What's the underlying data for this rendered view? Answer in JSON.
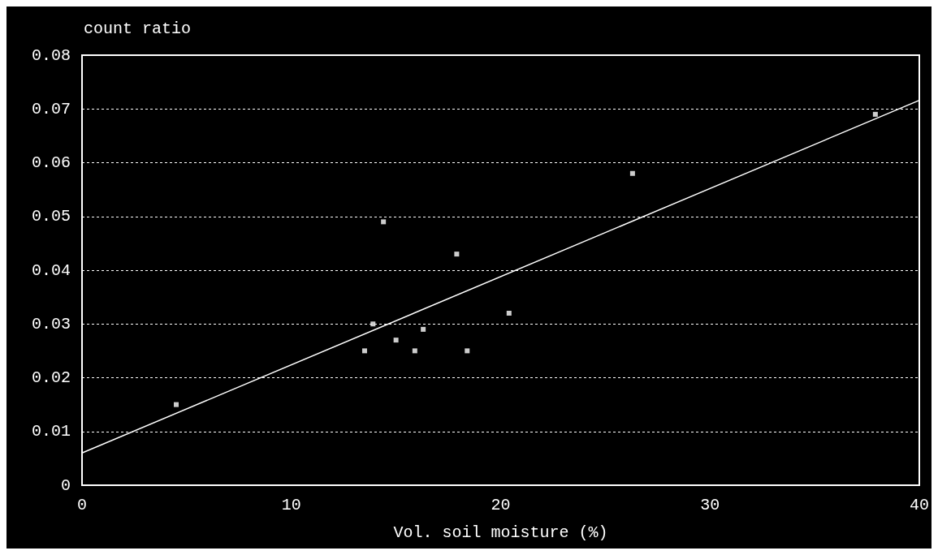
{
  "chart_data": {
    "type": "scatter",
    "xlabel": "Vol. soil moisture (%)",
    "ylabel": "count ratio",
    "xlim": [
      0,
      40
    ],
    "xticks": [
      0,
      10,
      20,
      30,
      40
    ],
    "ylim": [
      0,
      0.08
    ],
    "yticks": [
      0,
      0.01,
      0.02,
      0.03,
      0.04,
      0.05,
      0.06,
      0.07,
      0.08
    ],
    "grid": "y",
    "series": [
      {
        "marker": "square",
        "color": "#ffffff",
        "x": [
          4.5,
          13.5,
          13.9,
          14.4,
          15,
          15.9,
          16.3,
          17.9,
          18.4,
          20.4,
          26.3,
          37.9
        ],
        "values": [
          0.015,
          0.025,
          0.03,
          0.049,
          0.027,
          0.025,
          0.029,
          0.043,
          0.025,
          0.032,
          0.058,
          0.069
        ]
      },
      {
        "type": "line",
        "color": "#ffffff",
        "x": [
          0,
          40
        ],
        "values": [
          0.006,
          0.0716
        ],
        "line_style": "solid"
      }
    ]
  }
}
